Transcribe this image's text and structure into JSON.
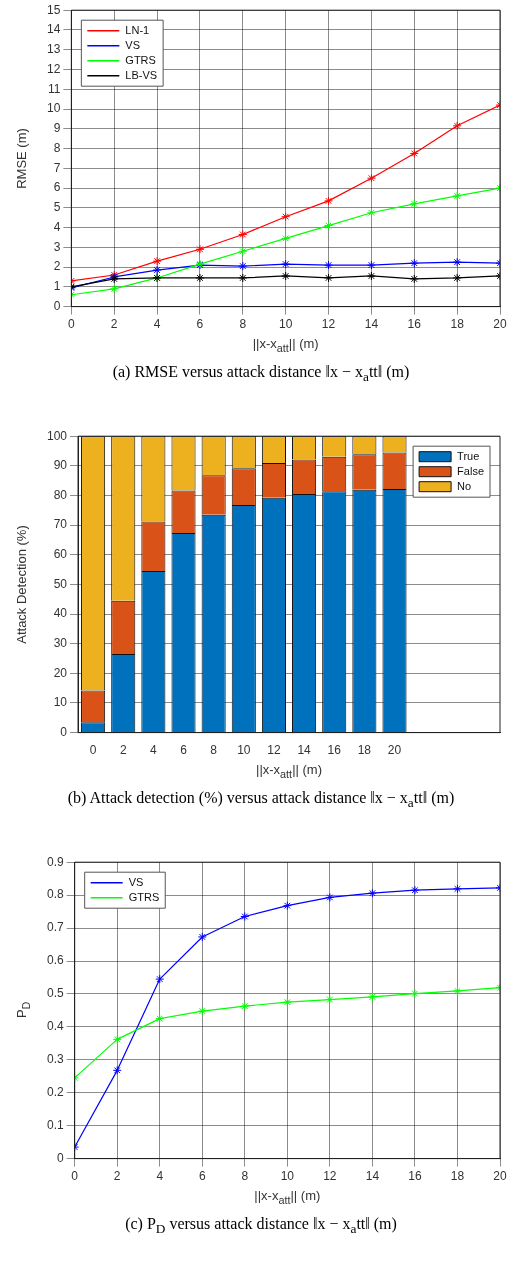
{
  "chart_data": [
    {
      "type": "line",
      "xlabel": "||x-x$_{att}$|| (m)",
      "ylabel": "RMSE (m)",
      "annotations": [
        "(a) RMSE versus attack distance ‖x − x$_{a}$tt‖ (m)"
      ],
      "x": [
        0,
        2,
        4,
        6,
        8,
        10,
        12,
        14,
        16,
        18,
        20
      ],
      "xlim": [
        0,
        20
      ],
      "xticks": [
        0,
        2,
        4,
        6,
        8,
        10,
        12,
        14,
        16,
        18,
        20
      ],
      "ylim": [
        0,
        15
      ],
      "yticks": [
        0,
        1,
        2,
        3,
        4,
        5,
        6,
        7,
        8,
        9,
        10,
        11,
        12,
        13,
        14,
        15
      ],
      "grid": true,
      "legend": "top left",
      "marker": "cross",
      "line_style": "solid",
      "series": [
        {
          "name": "LN-1",
          "color": "#ff0000",
          "values": [
            1.3,
            1.6,
            2.3,
            2.9,
            3.65,
            4.55,
            5.35,
            6.5,
            7.75,
            9.15,
            10.2
          ]
        },
        {
          "name": "VS",
          "color": "#0000ff",
          "values": [
            0.95,
            1.5,
            1.85,
            2.1,
            2.05,
            2.15,
            2.1,
            2.1,
            2.2,
            2.25,
            2.2
          ]
        },
        {
          "name": "GTRS",
          "color": "#00ff00",
          "values": [
            0.6,
            0.9,
            1.45,
            2.15,
            2.8,
            3.45,
            4.1,
            4.75,
            5.2,
            5.6,
            6.0
          ]
        },
        {
          "name": "LB-VS",
          "color": "#000000",
          "values": [
            1.0,
            1.4,
            1.45,
            1.45,
            1.45,
            1.55,
            1.45,
            1.55,
            1.4,
            1.45,
            1.55
          ]
        }
      ]
    },
    {
      "type": "bar",
      "stacked": true,
      "xlabel": "||x-x$_{att}$|| (m)",
      "ylabel": "Attack Detection (%)",
      "annotations": [
        "(b) Attack detection (%) versus attack distance ‖x − x$_{a}$tt‖ (m)"
      ],
      "categories": [
        "0",
        "2",
        "4",
        "6",
        "8",
        "10",
        "12",
        "14",
        "16",
        "18",
        "20",
        null,
        null,
        null
      ],
      "ylim": [
        0,
        100
      ],
      "yticks": [
        0,
        10,
        20,
        30,
        40,
        50,
        60,
        70,
        80,
        90,
        100
      ],
      "grid": "y",
      "legend": "top right",
      "series": [
        {
          "name": "True",
          "color": "#0072bd",
          "values": [
            3.5,
            26.5,
            54.5,
            67.3,
            73.5,
            76.8,
            79.2,
            80.5,
            81.4,
            81.9,
            82.2,
            null,
            null,
            null
          ]
        },
        {
          "name": "False",
          "color": "#d95319",
          "values": [
            10.7,
            18.0,
            16.7,
            14.4,
            13.3,
            12.4,
            11.8,
            11.6,
            11.7,
            12.0,
            12.3,
            null,
            null,
            null
          ]
        },
        {
          "name": "No",
          "color": "#edb120",
          "values": [
            85.8,
            55.5,
            28.8,
            18.3,
            13.2,
            10.8,
            9.0,
            7.9,
            6.9,
            6.1,
            5.5,
            null,
            null,
            null
          ]
        }
      ]
    },
    {
      "type": "line",
      "xlabel": "||x-x$_{att}$|| (m)",
      "ylabel": "P$_{D}$",
      "annotations": [
        "(c) P$_{D}$ versus attack distance ‖x − x$_{a}$tt‖ (m)"
      ],
      "x": [
        0,
        2,
        4,
        6,
        8,
        10,
        12,
        14,
        16,
        18,
        20
      ],
      "xlim": [
        0,
        20
      ],
      "xticks": [
        0,
        2,
        4,
        6,
        8,
        10,
        12,
        14,
        16,
        18,
        20
      ],
      "ylim": [
        0,
        0.9
      ],
      "yticks": [
        0,
        0.1,
        0.2,
        0.3,
        0.4,
        0.5,
        0.6,
        0.7,
        0.8,
        0.9
      ],
      "grid": true,
      "legend": "top left",
      "marker": "cross",
      "line_style": "solid",
      "series": [
        {
          "name": "VS",
          "color": "#0000ff",
          "values": [
            0.035,
            0.268,
            0.545,
            0.673,
            0.735,
            0.768,
            0.793,
            0.806,
            0.815,
            0.819,
            0.822
          ]
        },
        {
          "name": "GTRS",
          "color": "#00ff00",
          "values": [
            0.245,
            0.362,
            0.425,
            0.448,
            0.463,
            0.475,
            0.483,
            0.491,
            0.501,
            0.509,
            0.519
          ]
        }
      ]
    }
  ]
}
